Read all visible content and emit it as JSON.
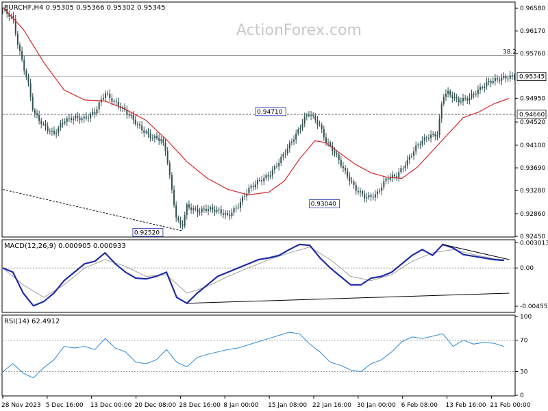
{
  "chart_data": [
    {
      "type": "candlestick",
      "header": "EURCHF,H4  0.95305 0.95366 0.95302 0.95345",
      "watermark": "ActionForex.com",
      "yaxis_ticks": [
        "0.96580",
        "0.96170",
        "0.95760",
        "0.95345",
        "0.94950",
        "0.94660",
        "0.94520",
        "0.94100",
        "0.93690",
        "0.93280",
        "0.92860",
        "0.92450"
      ],
      "ylim": [
        0.9245,
        0.9668
      ],
      "levels": [
        {
          "label": "38.2",
          "value": 0.9572,
          "style": "solid"
        },
        {
          "label": "0.95345",
          "value": 0.95345,
          "style": "current"
        },
        {
          "label": "0.94660",
          "value": 0.9466,
          "style": "dashed"
        }
      ],
      "annotations": [
        {
          "text": "0.94710",
          "value": 0.9471
        },
        {
          "text": "0.93040",
          "value": 0.9304
        },
        {
          "text": "0.92520",
          "value": 0.9252
        }
      ],
      "close_path": [
        [
          0,
          0.9655
        ],
        [
          0.02,
          0.964
        ],
        [
          0.03,
          0.959
        ],
        [
          0.04,
          0.9555
        ],
        [
          0.05,
          0.952
        ],
        [
          0.06,
          0.947
        ],
        [
          0.08,
          0.9445
        ],
        [
          0.1,
          0.943
        ],
        [
          0.12,
          0.9455
        ],
        [
          0.14,
          0.946
        ],
        [
          0.16,
          0.9458
        ],
        [
          0.18,
          0.947
        ],
        [
          0.2,
          0.9505
        ],
        [
          0.215,
          0.949
        ],
        [
          0.23,
          0.948
        ],
        [
          0.25,
          0.9462
        ],
        [
          0.27,
          0.944
        ],
        [
          0.29,
          0.9425
        ],
        [
          0.31,
          0.942
        ],
        [
          0.32,
          0.9395
        ],
        [
          0.33,
          0.933
        ],
        [
          0.34,
          0.9275
        ],
        [
          0.35,
          0.9262
        ],
        [
          0.36,
          0.93
        ],
        [
          0.38,
          0.929
        ],
        [
          0.4,
          0.9295
        ],
        [
          0.42,
          0.9292
        ],
        [
          0.44,
          0.9282
        ],
        [
          0.46,
          0.93
        ],
        [
          0.48,
          0.933
        ],
        [
          0.5,
          0.9345
        ],
        [
          0.52,
          0.9355
        ],
        [
          0.54,
          0.938
        ],
        [
          0.56,
          0.941
        ],
        [
          0.58,
          0.944
        ],
        [
          0.59,
          0.946
        ],
        [
          0.6,
          0.9468
        ],
        [
          0.62,
          0.9445
        ],
        [
          0.63,
          0.942
        ],
        [
          0.65,
          0.9395
        ],
        [
          0.67,
          0.936
        ],
        [
          0.69,
          0.933
        ],
        [
          0.71,
          0.9315
        ],
        [
          0.73,
          0.932
        ],
        [
          0.75,
          0.935
        ],
        [
          0.77,
          0.9355
        ],
        [
          0.79,
          0.938
        ],
        [
          0.81,
          0.941
        ],
        [
          0.83,
          0.9425
        ],
        [
          0.85,
          0.943
        ],
        [
          0.86,
          0.95
        ],
        [
          0.87,
          0.9505
        ],
        [
          0.89,
          0.949
        ],
        [
          0.91,
          0.9495
        ],
        [
          0.93,
          0.951
        ],
        [
          0.95,
          0.9525
        ],
        [
          0.97,
          0.953
        ],
        [
          0.99,
          0.9534
        ]
      ],
      "ma_path": [
        [
          0,
          0.966
        ],
        [
          0.04,
          0.962
        ],
        [
          0.08,
          0.956
        ],
        [
          0.12,
          0.951
        ],
        [
          0.16,
          0.9492
        ],
        [
          0.2,
          0.949
        ],
        [
          0.24,
          0.9475
        ],
        [
          0.28,
          0.9455
        ],
        [
          0.32,
          0.942
        ],
        [
          0.36,
          0.938
        ],
        [
          0.4,
          0.935
        ],
        [
          0.44,
          0.933
        ],
        [
          0.48,
          0.932
        ],
        [
          0.52,
          0.9325
        ],
        [
          0.55,
          0.9345
        ],
        [
          0.58,
          0.9385
        ],
        [
          0.61,
          0.9418
        ],
        [
          0.63,
          0.9415
        ],
        [
          0.66,
          0.9395
        ],
        [
          0.69,
          0.9375
        ],
        [
          0.72,
          0.936
        ],
        [
          0.75,
          0.9352
        ],
        [
          0.78,
          0.935
        ],
        [
          0.81,
          0.937
        ],
        [
          0.84,
          0.94
        ],
        [
          0.87,
          0.943
        ],
        [
          0.9,
          0.946
        ],
        [
          0.93,
          0.947
        ],
        [
          0.96,
          0.9485
        ],
        [
          0.99,
          0.9495
        ]
      ],
      "trend_dashed": [
        [
          0,
          0.933
        ],
        [
          0.35,
          0.9255
        ]
      ]
    },
    {
      "type": "line",
      "header": "MACD(12,26,9) 0.000905 0.000933",
      "yaxis_ticks": [
        "0.003013",
        "0.00",
        "-0.00455"
      ],
      "ylim": [
        -0.0052,
        0.0032
      ],
      "macd_path": [
        [
          0,
          0.0
        ],
        [
          0.02,
          -0.0005
        ],
        [
          0.04,
          -0.003
        ],
        [
          0.06,
          -0.0045
        ],
        [
          0.08,
          -0.004
        ],
        [
          0.1,
          -0.003
        ],
        [
          0.12,
          -0.0015
        ],
        [
          0.14,
          -0.0005
        ],
        [
          0.16,
          0.0005
        ],
        [
          0.18,
          0.0008
        ],
        [
          0.2,
          0.0018
        ],
        [
          0.22,
          0.0005
        ],
        [
          0.24,
          -0.0005
        ],
        [
          0.26,
          -0.0012
        ],
        [
          0.28,
          -0.0013
        ],
        [
          0.3,
          -0.001
        ],
        [
          0.32,
          -0.0005
        ],
        [
          0.34,
          -0.0035
        ],
        [
          0.36,
          -0.0042
        ],
        [
          0.38,
          -0.003
        ],
        [
          0.4,
          -0.002
        ],
        [
          0.42,
          -0.001
        ],
        [
          0.44,
          -0.0005
        ],
        [
          0.46,
          0.0
        ],
        [
          0.48,
          0.0005
        ],
        [
          0.5,
          0.001
        ],
        [
          0.52,
          0.0012
        ],
        [
          0.54,
          0.0015
        ],
        [
          0.56,
          0.0022
        ],
        [
          0.58,
          0.0028
        ],
        [
          0.6,
          0.0027
        ],
        [
          0.62,
          0.0012
        ],
        [
          0.64,
          0.0
        ],
        [
          0.66,
          -0.001
        ],
        [
          0.68,
          -0.002
        ],
        [
          0.7,
          -0.002
        ],
        [
          0.72,
          -0.0012
        ],
        [
          0.74,
          -0.001
        ],
        [
          0.76,
          -0.0005
        ],
        [
          0.78,
          0.0005
        ],
        [
          0.8,
          0.0015
        ],
        [
          0.82,
          0.0022
        ],
        [
          0.84,
          0.0015
        ],
        [
          0.86,
          0.0028
        ],
        [
          0.88,
          0.0024
        ],
        [
          0.9,
          0.0016
        ],
        [
          0.92,
          0.0014
        ],
        [
          0.94,
          0.0012
        ],
        [
          0.96,
          0.001
        ],
        [
          0.98,
          0.0009
        ]
      ],
      "signal_path": [
        [
          0,
          0.0
        ],
        [
          0.04,
          -0.002
        ],
        [
          0.08,
          -0.0035
        ],
        [
          0.12,
          -0.002
        ],
        [
          0.16,
          0.0
        ],
        [
          0.2,
          0.001
        ],
        [
          0.24,
          0.0002
        ],
        [
          0.28,
          -0.001
        ],
        [
          0.32,
          -0.0008
        ],
        [
          0.36,
          -0.003
        ],
        [
          0.4,
          -0.0022
        ],
        [
          0.44,
          -0.001
        ],
        [
          0.48,
          0.0
        ],
        [
          0.52,
          0.001
        ],
        [
          0.56,
          0.0018
        ],
        [
          0.6,
          0.0025
        ],
        [
          0.64,
          0.001
        ],
        [
          0.68,
          -0.001
        ],
        [
          0.72,
          -0.0015
        ],
        [
          0.76,
          -0.0008
        ],
        [
          0.8,
          0.0008
        ],
        [
          0.84,
          0.0018
        ],
        [
          0.88,
          0.0022
        ],
        [
          0.92,
          0.0016
        ],
        [
          0.96,
          0.0011
        ],
        [
          0.98,
          0.001
        ]
      ],
      "trend_solid_lower": [
        [
          0.36,
          -0.0042
        ],
        [
          0.99,
          -0.003
        ]
      ],
      "trend_solid_upper": [
        [
          0.86,
          0.0028
        ],
        [
          0.99,
          0.001
        ]
      ]
    },
    {
      "type": "line",
      "header": "RSI(14) 62.4912",
      "yaxis_ticks": [
        "100",
        "70",
        "30",
        "0"
      ],
      "ylim": [
        0,
        100
      ],
      "rsi_path": [
        [
          0,
          30
        ],
        [
          0.02,
          40
        ],
        [
          0.04,
          28
        ],
        [
          0.06,
          22
        ],
        [
          0.08,
          35
        ],
        [
          0.1,
          45
        ],
        [
          0.12,
          62
        ],
        [
          0.14,
          60
        ],
        [
          0.16,
          62
        ],
        [
          0.18,
          58
        ],
        [
          0.2,
          72
        ],
        [
          0.22,
          60
        ],
        [
          0.24,
          55
        ],
        [
          0.26,
          42
        ],
        [
          0.28,
          40
        ],
        [
          0.3,
          45
        ],
        [
          0.32,
          58
        ],
        [
          0.34,
          42
        ],
        [
          0.36,
          36
        ],
        [
          0.38,
          48
        ],
        [
          0.4,
          52
        ],
        [
          0.42,
          55
        ],
        [
          0.44,
          58
        ],
        [
          0.46,
          60
        ],
        [
          0.48,
          64
        ],
        [
          0.5,
          68
        ],
        [
          0.52,
          72
        ],
        [
          0.54,
          76
        ],
        [
          0.56,
          80
        ],
        [
          0.58,
          78
        ],
        [
          0.6,
          65
        ],
        [
          0.62,
          55
        ],
        [
          0.64,
          42
        ],
        [
          0.66,
          38
        ],
        [
          0.68,
          32
        ],
        [
          0.7,
          30
        ],
        [
          0.72,
          40
        ],
        [
          0.74,
          45
        ],
        [
          0.76,
          55
        ],
        [
          0.78,
          68
        ],
        [
          0.8,
          74
        ],
        [
          0.82,
          72
        ],
        [
          0.84,
          75
        ],
        [
          0.86,
          78
        ],
        [
          0.88,
          62
        ],
        [
          0.9,
          70
        ],
        [
          0.92,
          65
        ],
        [
          0.94,
          67
        ],
        [
          0.96,
          66
        ],
        [
          0.98,
          62
        ]
      ]
    }
  ],
  "x_labels": [
    "28 Nov 2023",
    "5 Dec 16:00",
    "13 Dec 00:00",
    "20 Dec 08:00",
    "28 Dec 16:00",
    "8 Jan 00:00",
    "15 Jan 08:00",
    "22 Jan 16:00",
    "30 Jan 00:00",
    "6 Feb 08:00",
    "13 Feb 16:00",
    "21 Feb 00:00"
  ],
  "colors": {
    "price": "#2f4f4f",
    "ma": "#d62728",
    "macd": "#1f2aa8",
    "signal": "#a0a0a0",
    "rsi": "#2b8ad9",
    "grid": "#c0c0c0"
  }
}
